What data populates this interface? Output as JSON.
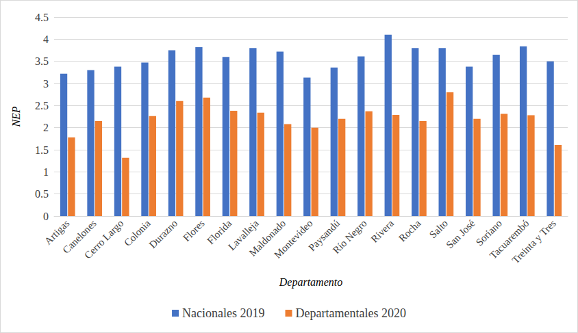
{
  "chart_data": {
    "type": "bar",
    "x_label": "Departamento",
    "y_label": "NEP",
    "categories": [
      "Artigas",
      "Canelones",
      "Cerro Largo",
      "Colonia",
      "Durazno",
      "Flores",
      "Florida",
      "Lavalleja",
      "Maldonado",
      "Montevideo",
      "Paysandú",
      "Río Negro",
      "Rivera",
      "Rocha",
      "Salto",
      "San José",
      "Soriano",
      "Tacuarembó",
      "Treinta y Tres"
    ],
    "series": [
      {
        "name": "Nacionales 2019",
        "color": "#4472c4",
        "values": [
          3.22,
          3.3,
          3.38,
          3.47,
          3.75,
          3.82,
          3.6,
          3.8,
          3.72,
          3.13,
          3.36,
          3.61,
          4.1,
          3.8,
          3.8,
          3.38,
          3.65,
          3.84,
          3.5
        ]
      },
      {
        "name": "Departamentales 2020",
        "color": "#ed7d31",
        "values": [
          1.78,
          2.15,
          1.32,
          2.26,
          2.6,
          2.68,
          2.38,
          2.34,
          2.08,
          2.0,
          2.2,
          2.37,
          2.29,
          2.15,
          2.8,
          2.2,
          2.31,
          2.28,
          1.61
        ]
      }
    ],
    "ylim": [
      0,
      4.5
    ],
    "yticks": [
      0,
      0.5,
      1,
      1.5,
      2,
      2.5,
      3,
      3.5,
      4,
      4.5
    ],
    "grid": true,
    "legend": "bottom"
  }
}
